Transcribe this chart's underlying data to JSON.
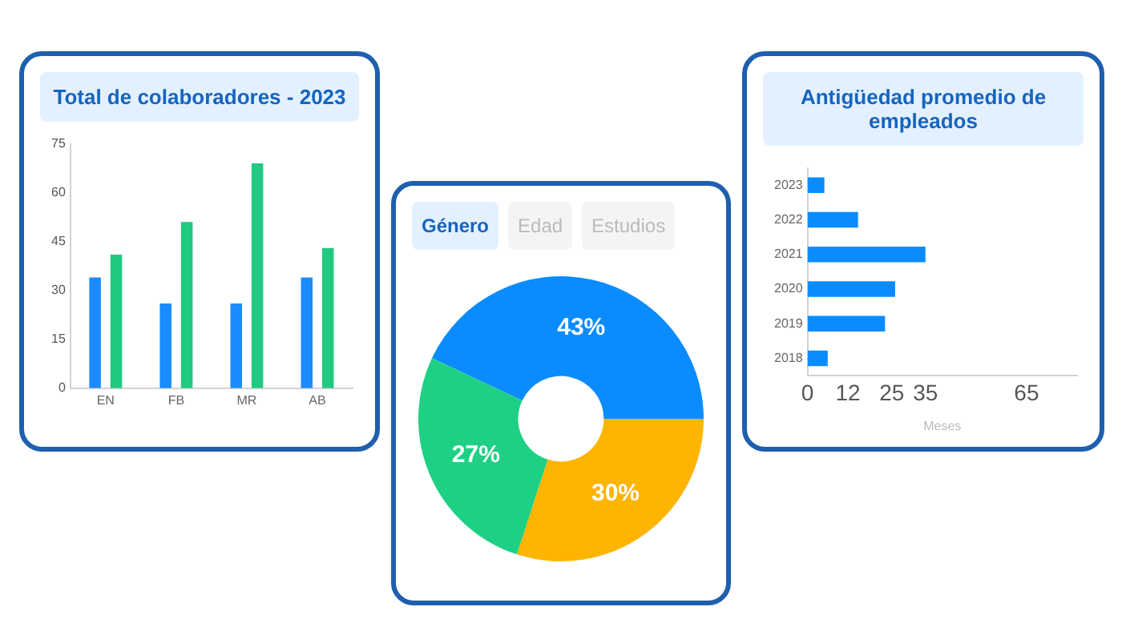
{
  "chart_data": [
    {
      "type": "bar",
      "title": "Total de colaboradores - 2023",
      "categories": [
        "EN",
        "FB",
        "MR",
        "AB"
      ],
      "series": [
        {
          "color": "#1a8cff",
          "values": [
            34,
            26,
            26,
            34
          ]
        },
        {
          "color": "#20c97f",
          "values": [
            41,
            51,
            69,
            43
          ]
        }
      ],
      "ylim": [
        0,
        75
      ],
      "yticks": [
        0,
        15,
        30,
        45,
        60,
        75
      ],
      "grid": false
    },
    {
      "type": "donut",
      "annotations": [
        "Género",
        "Edad",
        "Estudios"
      ],
      "categories": [
        null,
        null,
        null
      ],
      "values": [
        43,
        30,
        27
      ],
      "colors": [
        "#0a8cff",
        "#ffb400",
        "#1ed083"
      ],
      "value_labels": [
        "43%",
        "30%",
        "27%"
      ]
    },
    {
      "type": "bar",
      "orientation": "horizontal",
      "title": "Antigüedad promedio de empleados",
      "xlabel": "Meses",
      "categories": [
        "2023",
        "2022",
        "2021",
        "2020",
        "2019",
        "2018"
      ],
      "values": [
        5,
        15,
        35,
        26,
        23,
        6
      ],
      "color": "#0a8cff",
      "xlim": [
        0,
        80
      ],
      "xticks": [
        0,
        12,
        25,
        35,
        65
      ],
      "grid": false
    }
  ]
}
